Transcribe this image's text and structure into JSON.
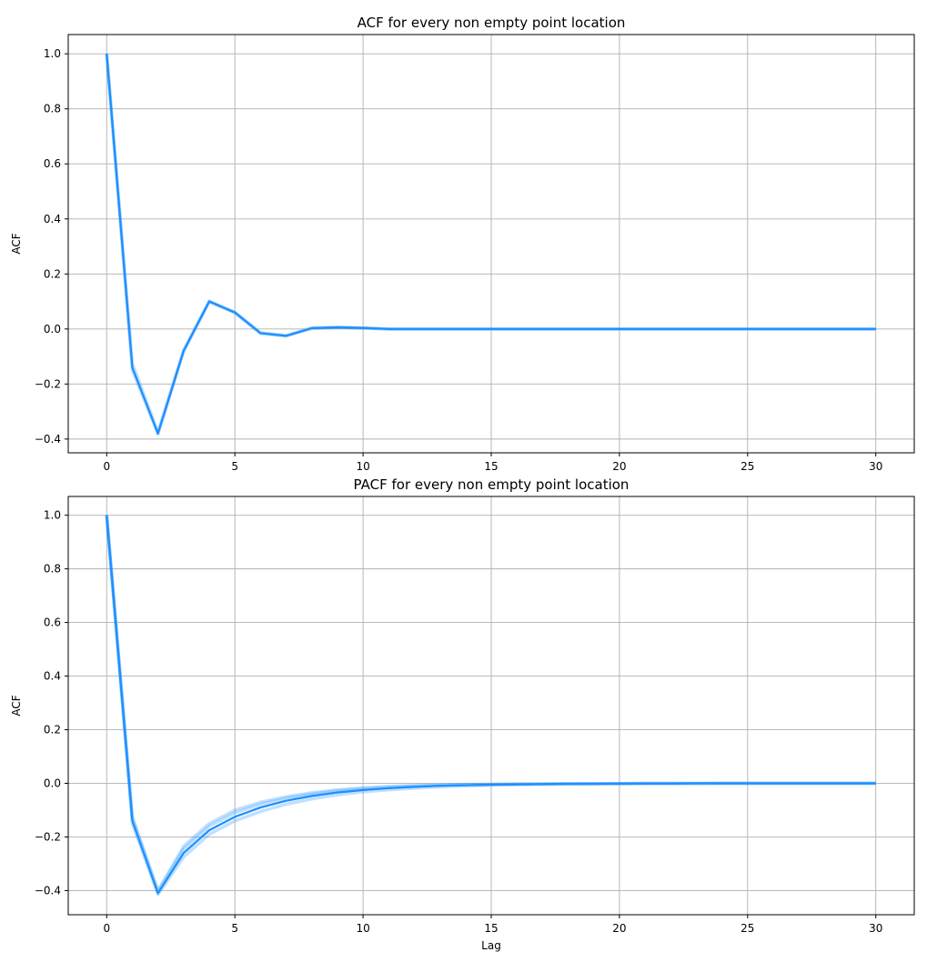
{
  "chart_data": [
    {
      "type": "line",
      "title": "ACF for every non empty point location",
      "xlabel": "",
      "ylabel": "ACF",
      "xlim": [
        -1.5,
        31.5
      ],
      "ylim": [
        -0.45,
        1.07
      ],
      "xticks": [
        0,
        5,
        10,
        15,
        20,
        25,
        30
      ],
      "yticks": [
        -0.4,
        -0.2,
        0.0,
        0.2,
        0.4,
        0.6,
        0.8,
        1.0
      ],
      "grid": true,
      "color": "#1e90ff",
      "x": [
        0,
        1,
        2,
        3,
        4,
        5,
        6,
        7,
        8,
        9,
        10,
        11,
        12,
        13,
        14,
        15,
        16,
        17,
        18,
        19,
        20,
        21,
        22,
        23,
        24,
        25,
        26,
        27,
        28,
        29,
        30
      ],
      "series": [
        {
          "values": [
            1.0,
            -0.14,
            -0.38,
            -0.08,
            0.1,
            0.06,
            -0.015,
            -0.025,
            0.003,
            0.006,
            0.004,
            0.0,
            0.0,
            0.0,
            0.0,
            0.0,
            0.0,
            0.0,
            0.0,
            0.0,
            0.0,
            0.0,
            0.0,
            0.0,
            0.0,
            0.0,
            0.0,
            0.0,
            0.0,
            0.0,
            0.0
          ]
        },
        {
          "values": [
            1.0,
            -0.125,
            -0.375,
            -0.077,
            0.102,
            0.061,
            -0.013,
            -0.023,
            0.004,
            0.007,
            0.004,
            0.0,
            0.0,
            0.0,
            0.0,
            0.0,
            0.0,
            0.0,
            0.0,
            0.0,
            0.0,
            0.0,
            0.0,
            0.0,
            0.0,
            0.0,
            0.0,
            0.0,
            0.0,
            0.0,
            0.0
          ]
        },
        {
          "values": [
            1.0,
            -0.15,
            -0.382,
            -0.082,
            0.098,
            0.059,
            -0.017,
            -0.026,
            0.002,
            0.005,
            0.003,
            0.0,
            0.0,
            0.0,
            0.0,
            0.0,
            0.0,
            0.0,
            0.0,
            0.0,
            0.0,
            0.0,
            0.0,
            0.0,
            0.0,
            0.0,
            0.0,
            0.0,
            0.0,
            0.0,
            0.0
          ]
        }
      ]
    },
    {
      "type": "line",
      "title": "PACF for every non empty point location",
      "xlabel": "Lag",
      "ylabel": "ACF",
      "xlim": [
        -1.5,
        31.5
      ],
      "ylim": [
        -0.49,
        1.07
      ],
      "xticks": [
        0,
        5,
        10,
        15,
        20,
        25,
        30
      ],
      "yticks": [
        -0.4,
        -0.2,
        0.0,
        0.2,
        0.4,
        0.6,
        0.8,
        1.0
      ],
      "grid": true,
      "color": "#1e90ff",
      "x": [
        0,
        1,
        2,
        3,
        4,
        5,
        6,
        7,
        8,
        9,
        10,
        11,
        12,
        13,
        14,
        15,
        16,
        17,
        18,
        19,
        20,
        21,
        22,
        23,
        24,
        25,
        26,
        27,
        28,
        29,
        30
      ],
      "series": [
        {
          "values": [
            1.0,
            -0.14,
            -0.41,
            -0.26,
            -0.175,
            -0.125,
            -0.09,
            -0.065,
            -0.047,
            -0.034,
            -0.025,
            -0.018,
            -0.013,
            -0.009,
            -0.007,
            -0.005,
            -0.004,
            -0.003,
            -0.002,
            -0.002,
            -0.001,
            -0.001,
            -0.001,
            0.0,
            0.0,
            0.0,
            0.0,
            0.0,
            0.0,
            0.0,
            0.0
          ]
        },
        {
          "values": [
            1.0,
            -0.125,
            -0.4,
            -0.235,
            -0.15,
            -0.1,
            -0.07,
            -0.05,
            -0.035,
            -0.024,
            -0.017,
            -0.012,
            -0.008,
            -0.006,
            -0.004,
            -0.003,
            -0.002,
            -0.002,
            -0.001,
            -0.001,
            -0.001,
            0.0,
            0.0,
            0.0,
            0.0,
            0.0,
            0.0,
            0.0,
            0.0,
            0.0,
            0.0
          ]
        },
        {
          "values": [
            1.0,
            -0.15,
            -0.415,
            -0.275,
            -0.19,
            -0.14,
            -0.105,
            -0.078,
            -0.058,
            -0.043,
            -0.032,
            -0.024,
            -0.018,
            -0.013,
            -0.01,
            -0.007,
            -0.005,
            -0.004,
            -0.003,
            -0.002,
            -0.002,
            -0.001,
            -0.001,
            -0.001,
            0.0,
            0.0,
            0.0,
            0.0,
            0.0,
            0.0,
            0.0
          ]
        },
        {
          "values": [
            1.0,
            -0.13,
            -0.405,
            -0.245,
            -0.16,
            -0.11,
            -0.078,
            -0.056,
            -0.04,
            -0.028,
            -0.02,
            -0.014,
            -0.01,
            -0.007,
            -0.005,
            -0.004,
            -0.003,
            -0.002,
            -0.001,
            -0.001,
            -0.001,
            0.0,
            0.0,
            0.0,
            0.0,
            0.0,
            0.0,
            0.0,
            0.0,
            0.0,
            0.0
          ]
        }
      ]
    }
  ]
}
